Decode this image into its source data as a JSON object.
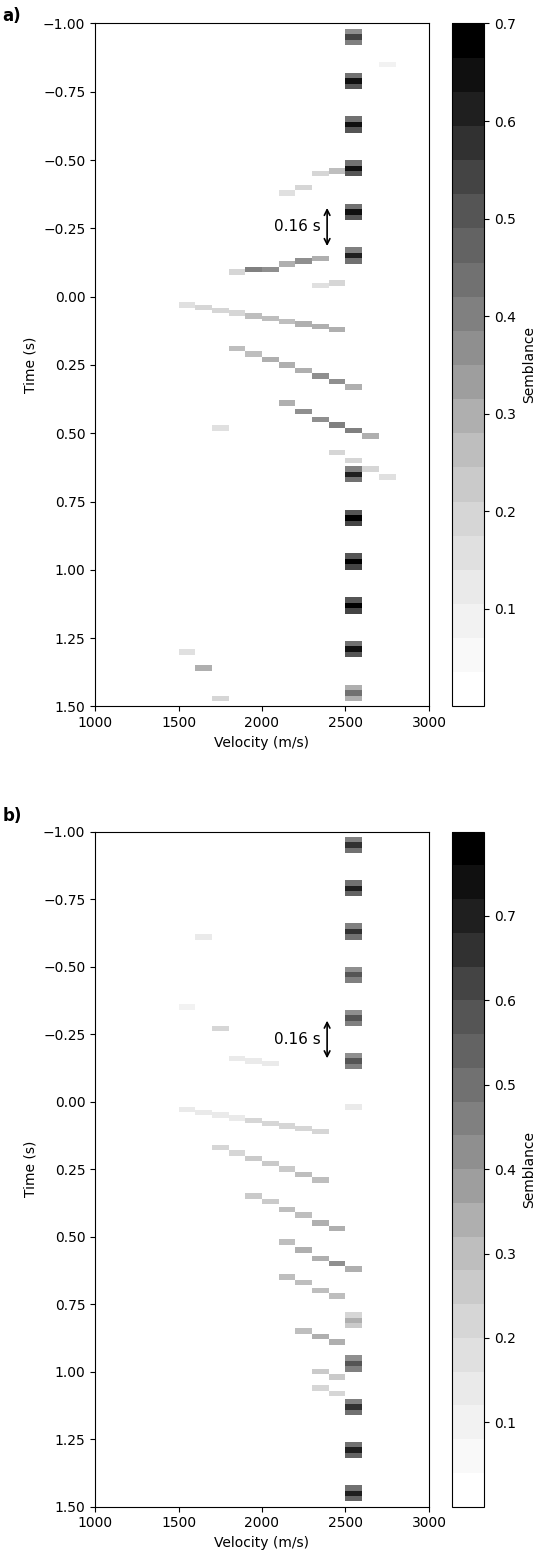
{
  "chart_data": [
    {
      "type": "heatmap",
      "panel_label": "a)",
      "xlabel": "Velocity (m/s)",
      "ylabel": "Time (s)",
      "xlim": [
        1000,
        3000
      ],
      "ylim": [
        1.5,
        -1.0
      ],
      "xticks": [
        1000,
        1500,
        2000,
        2500,
        3000
      ],
      "yticks": [
        {
          "value": -1.0,
          "label": "−1.00"
        },
        {
          "value": -0.75,
          "label": "−0.75"
        },
        {
          "value": -0.5,
          "label": "−0.50"
        },
        {
          "value": -0.25,
          "label": "−0.25"
        },
        {
          "value": 0.0,
          "label": "0.00"
        },
        {
          "value": 0.25,
          "label": "0.25"
        },
        {
          "value": 0.5,
          "label": "0.50"
        },
        {
          "value": 0.75,
          "label": "0.75"
        },
        {
          "value": 1.0,
          "label": "1.00"
        },
        {
          "value": 1.25,
          "label": "1.25"
        },
        {
          "value": 1.5,
          "label": "1.50"
        }
      ],
      "colorbar": {
        "label": "Semblance",
        "range": [
          0,
          0.7
        ],
        "ticks": [
          0.1,
          0.2,
          0.3,
          0.4,
          0.5,
          0.6,
          0.7
        ]
      },
      "annotation": {
        "text": "0.16 s",
        "velocity": 2390,
        "time_start": -0.335,
        "time_end": -0.175
      },
      "cell_size": {
        "time": 0.02,
        "velocity": 100
      },
      "cells": [
        [
          -0.97,
          2550,
          0.35
        ],
        [
          -0.95,
          2550,
          0.55
        ],
        [
          -0.93,
          2550,
          0.4
        ],
        [
          -0.81,
          2550,
          0.45
        ],
        [
          -0.79,
          2550,
          0.65
        ],
        [
          -0.77,
          2550,
          0.5
        ],
        [
          -0.65,
          2550,
          0.45
        ],
        [
          -0.63,
          2550,
          0.65
        ],
        [
          -0.61,
          2550,
          0.5
        ],
        [
          -0.49,
          2550,
          0.45
        ],
        [
          -0.47,
          2550,
          0.65
        ],
        [
          -0.45,
          2550,
          0.5
        ],
        [
          -0.33,
          2550,
          0.45
        ],
        [
          -0.31,
          2550,
          0.65
        ],
        [
          -0.29,
          2550,
          0.5
        ],
        [
          -0.17,
          2550,
          0.4
        ],
        [
          -0.15,
          2550,
          0.6
        ],
        [
          -0.13,
          2550,
          0.45
        ],
        [
          0.63,
          2550,
          0.4
        ],
        [
          0.65,
          2550,
          0.6
        ],
        [
          0.67,
          2550,
          0.45
        ],
        [
          0.79,
          2550,
          0.5
        ],
        [
          0.81,
          2550,
          0.7
        ],
        [
          0.83,
          2550,
          0.55
        ],
        [
          0.95,
          2550,
          0.5
        ],
        [
          0.97,
          2550,
          0.7
        ],
        [
          0.99,
          2550,
          0.55
        ],
        [
          1.11,
          2550,
          0.5
        ],
        [
          1.13,
          2550,
          0.7
        ],
        [
          1.15,
          2550,
          0.55
        ],
        [
          1.27,
          2550,
          0.45
        ],
        [
          1.29,
          2550,
          0.65
        ],
        [
          1.31,
          2550,
          0.5
        ],
        [
          1.43,
          2550,
          0.3
        ],
        [
          1.45,
          2550,
          0.45
        ],
        [
          1.47,
          2550,
          0.3
        ],
        [
          0.03,
          1550,
          0.15
        ],
        [
          0.04,
          1650,
          0.2
        ],
        [
          0.05,
          1750,
          0.2
        ],
        [
          0.06,
          1850,
          0.2
        ],
        [
          0.07,
          1950,
          0.25
        ],
        [
          0.08,
          2050,
          0.25
        ],
        [
          0.09,
          2150,
          0.25
        ],
        [
          0.1,
          2250,
          0.3
        ],
        [
          0.11,
          2350,
          0.3
        ],
        [
          0.12,
          2450,
          0.3
        ],
        [
          0.19,
          1850,
          0.25
        ],
        [
          0.21,
          1950,
          0.25
        ],
        [
          0.23,
          2050,
          0.3
        ],
        [
          0.25,
          2150,
          0.3
        ],
        [
          0.27,
          2250,
          0.3
        ],
        [
          0.29,
          2350,
          0.35
        ],
        [
          0.31,
          2450,
          0.35
        ],
        [
          0.33,
          2550,
          0.3
        ],
        [
          0.39,
          2150,
          0.3
        ],
        [
          0.42,
          2250,
          0.35
        ],
        [
          0.45,
          2350,
          0.35
        ],
        [
          0.47,
          2450,
          0.4
        ],
        [
          0.49,
          2550,
          0.4
        ],
        [
          0.51,
          2650,
          0.3
        ],
        [
          0.57,
          2450,
          0.2
        ],
        [
          0.6,
          2550,
          0.2
        ],
        [
          0.63,
          2650,
          0.2
        ],
        [
          0.66,
          2750,
          0.15
        ],
        [
          -0.09,
          1850,
          0.2
        ],
        [
          -0.1,
          1950,
          0.4
        ],
        [
          -0.1,
          2050,
          0.35
        ],
        [
          -0.12,
          2150,
          0.3
        ],
        [
          -0.13,
          2250,
          0.35
        ],
        [
          -0.14,
          2350,
          0.3
        ],
        [
          -0.04,
          2350,
          0.15
        ],
        [
          -0.05,
          2450,
          0.2
        ],
        [
          -0.38,
          2150,
          0.15
        ],
        [
          -0.4,
          2250,
          0.2
        ],
        [
          -0.45,
          2350,
          0.2
        ],
        [
          -0.46,
          2450,
          0.25
        ],
        [
          1.36,
          1650,
          0.3
        ],
        [
          1.3,
          1550,
          0.15
        ],
        [
          1.47,
          1750,
          0.2
        ],
        [
          0.48,
          1750,
          0.15
        ],
        [
          -0.85,
          2750,
          0.1
        ]
      ]
    },
    {
      "type": "heatmap",
      "panel_label": "b)",
      "xlabel": "Velocity (m/s)",
      "ylabel": "Time (s)",
      "xlim": [
        1000,
        3000
      ],
      "ylim": [
        1.5,
        -1.0
      ],
      "xticks": [
        1000,
        1500,
        2000,
        2500,
        3000
      ],
      "yticks": [
        {
          "value": -1.0,
          "label": "−1.00"
        },
        {
          "value": -0.75,
          "label": "−0.75"
        },
        {
          "value": -0.5,
          "label": "−0.50"
        },
        {
          "value": -0.25,
          "label": "−0.25"
        },
        {
          "value": 0.0,
          "label": "0.00"
        },
        {
          "value": 0.25,
          "label": "0.25"
        },
        {
          "value": 0.5,
          "label": "0.50"
        },
        {
          "value": 0.75,
          "label": "0.75"
        },
        {
          "value": 1.0,
          "label": "1.00"
        },
        {
          "value": 1.25,
          "label": "1.25"
        },
        {
          "value": 1.5,
          "label": "1.50"
        }
      ],
      "colorbar": {
        "label": "Semblance",
        "range": [
          0,
          0.8
        ],
        "ticks": [
          0.1,
          0.2,
          0.3,
          0.4,
          0.5,
          0.6,
          0.7
        ]
      },
      "annotation": {
        "text": "0.16 s",
        "velocity": 2390,
        "time_start": -0.31,
        "time_end": -0.15
      },
      "cell_size": {
        "time": 0.02,
        "velocity": 100
      },
      "cells": [
        [
          -0.97,
          2550,
          0.45
        ],
        [
          -0.95,
          2550,
          0.65
        ],
        [
          -0.93,
          2550,
          0.5
        ],
        [
          -0.81,
          2550,
          0.5
        ],
        [
          -0.79,
          2550,
          0.7
        ],
        [
          -0.77,
          2550,
          0.55
        ],
        [
          -0.65,
          2550,
          0.45
        ],
        [
          -0.63,
          2550,
          0.65
        ],
        [
          -0.61,
          2550,
          0.5
        ],
        [
          -0.49,
          2550,
          0.4
        ],
        [
          -0.47,
          2550,
          0.6
        ],
        [
          -0.45,
          2550,
          0.45
        ],
        [
          -0.33,
          2550,
          0.4
        ],
        [
          -0.31,
          2550,
          0.6
        ],
        [
          -0.29,
          2550,
          0.45
        ],
        [
          -0.17,
          2550,
          0.4
        ],
        [
          -0.15,
          2550,
          0.6
        ],
        [
          -0.13,
          2550,
          0.45
        ],
        [
          0.02,
          2550,
          0.15
        ],
        [
          0.79,
          2550,
          0.2
        ],
        [
          0.81,
          2550,
          0.35
        ],
        [
          0.83,
          2550,
          0.25
        ],
        [
          0.95,
          2550,
          0.4
        ],
        [
          0.97,
          2550,
          0.6
        ],
        [
          0.99,
          2550,
          0.45
        ],
        [
          1.11,
          2550,
          0.45
        ],
        [
          1.13,
          2550,
          0.65
        ],
        [
          1.15,
          2550,
          0.5
        ],
        [
          1.27,
          2550,
          0.5
        ],
        [
          1.29,
          2550,
          0.7
        ],
        [
          1.31,
          2550,
          0.55
        ],
        [
          1.43,
          2550,
          0.5
        ],
        [
          1.45,
          2550,
          0.7
        ],
        [
          1.47,
          2550,
          0.55
        ],
        [
          0.03,
          1550,
          0.15
        ],
        [
          0.04,
          1650,
          0.15
        ],
        [
          0.05,
          1750,
          0.15
        ],
        [
          0.06,
          1850,
          0.15
        ],
        [
          0.07,
          1950,
          0.2
        ],
        [
          0.08,
          2050,
          0.2
        ],
        [
          0.09,
          2150,
          0.2
        ],
        [
          0.1,
          2250,
          0.2
        ],
        [
          0.11,
          2350,
          0.2
        ],
        [
          0.17,
          1750,
          0.2
        ],
        [
          0.19,
          1850,
          0.2
        ],
        [
          0.21,
          1950,
          0.25
        ],
        [
          0.23,
          2050,
          0.25
        ],
        [
          0.25,
          2150,
          0.25
        ],
        [
          0.27,
          2250,
          0.3
        ],
        [
          0.29,
          2350,
          0.3
        ],
        [
          0.35,
          1950,
          0.25
        ],
        [
          0.37,
          2050,
          0.25
        ],
        [
          0.4,
          2150,
          0.3
        ],
        [
          0.42,
          2250,
          0.3
        ],
        [
          0.45,
          2350,
          0.35
        ],
        [
          0.47,
          2450,
          0.35
        ],
        [
          0.52,
          2150,
          0.3
        ],
        [
          0.55,
          2250,
          0.35
        ],
        [
          0.58,
          2350,
          0.35
        ],
        [
          0.6,
          2450,
          0.4
        ],
        [
          0.62,
          2550,
          0.35
        ],
        [
          0.65,
          2150,
          0.3
        ],
        [
          0.67,
          2250,
          0.3
        ],
        [
          0.7,
          2350,
          0.3
        ],
        [
          0.72,
          2450,
          0.3
        ],
        [
          0.85,
          2250,
          0.3
        ],
        [
          0.87,
          2350,
          0.35
        ],
        [
          0.89,
          2450,
          0.35
        ],
        [
          1.0,
          2350,
          0.25
        ],
        [
          1.02,
          2450,
          0.25
        ],
        [
          1.06,
          2350,
          0.2
        ],
        [
          1.08,
          2450,
          0.2
        ],
        [
          -0.27,
          1750,
          0.2
        ],
        [
          -0.16,
          1850,
          0.15
        ],
        [
          -0.15,
          1950,
          0.15
        ],
        [
          -0.14,
          2050,
          0.12
        ],
        [
          -0.61,
          1650,
          0.12
        ],
        [
          -0.35,
          1550,
          0.1
        ]
      ]
    }
  ]
}
